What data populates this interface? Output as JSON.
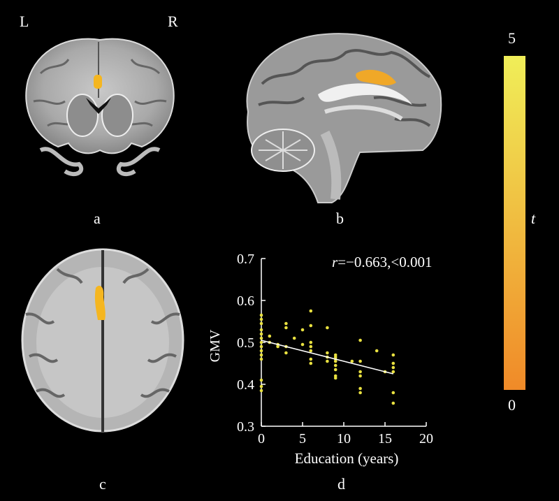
{
  "orientation": {
    "left": "L",
    "right": "R"
  },
  "panels": {
    "a": "a",
    "b": "b",
    "c": "c",
    "d": "d"
  },
  "colorbar": {
    "max": "5",
    "min": "0",
    "label": "t",
    "colors": [
      "#f08a28",
      "#f0ee58"
    ]
  },
  "colors": {
    "background": "#000000",
    "activation": "#f5b620",
    "scatter": "#e8e040",
    "fit_line": "#ffffff"
  },
  "chart_data": {
    "type": "scatter",
    "xlabel": "Education (years)",
    "ylabel": "GMV",
    "annotation": {
      "r_symbol": "r",
      "text": "=−0.663,<0.001"
    },
    "xlim": [
      0,
      20
    ],
    "ylim": [
      0.3,
      0.7
    ],
    "xticks": [
      "0",
      "5",
      "10",
      "15",
      "20"
    ],
    "yticks": [
      "0.3",
      "0.4",
      "0.5",
      "0.6",
      "0.7"
    ],
    "fit_line": {
      "x": [
        0,
        16
      ],
      "y": [
        0.505,
        0.425
      ]
    },
    "points": [
      [
        0,
        0.565
      ],
      [
        0,
        0.555
      ],
      [
        0,
        0.545
      ],
      [
        0,
        0.53
      ],
      [
        0,
        0.52
      ],
      [
        0,
        0.51
      ],
      [
        0,
        0.5
      ],
      [
        0,
        0.49
      ],
      [
        0,
        0.48
      ],
      [
        0,
        0.47
      ],
      [
        0,
        0.46
      ],
      [
        0,
        0.41
      ],
      [
        0,
        0.395
      ],
      [
        0,
        0.385
      ],
      [
        1,
        0.515
      ],
      [
        1,
        0.5
      ],
      [
        2,
        0.495
      ],
      [
        2,
        0.49
      ],
      [
        3,
        0.545
      ],
      [
        3,
        0.535
      ],
      [
        3,
        0.49
      ],
      [
        3,
        0.475
      ],
      [
        4,
        0.51
      ],
      [
        5,
        0.53
      ],
      [
        5,
        0.495
      ],
      [
        6,
        0.575
      ],
      [
        6,
        0.54
      ],
      [
        6,
        0.5
      ],
      [
        6,
        0.49
      ],
      [
        6,
        0.48
      ],
      [
        6,
        0.46
      ],
      [
        6,
        0.45
      ],
      [
        8,
        0.535
      ],
      [
        8,
        0.475
      ],
      [
        8,
        0.465
      ],
      [
        8,
        0.455
      ],
      [
        9,
        0.47
      ],
      [
        9,
        0.465
      ],
      [
        9,
        0.46
      ],
      [
        9,
        0.455
      ],
      [
        9,
        0.445
      ],
      [
        9,
        0.435
      ],
      [
        9,
        0.42
      ],
      [
        9,
        0.415
      ],
      [
        11,
        0.455
      ],
      [
        12,
        0.505
      ],
      [
        12,
        0.455
      ],
      [
        12,
        0.43
      ],
      [
        12,
        0.42
      ],
      [
        12,
        0.39
      ],
      [
        12,
        0.38
      ],
      [
        14,
        0.48
      ],
      [
        15,
        0.43
      ],
      [
        16,
        0.47
      ],
      [
        16,
        0.45
      ],
      [
        16,
        0.44
      ],
      [
        16,
        0.43
      ],
      [
        16,
        0.38
      ],
      [
        16,
        0.355
      ]
    ]
  }
}
